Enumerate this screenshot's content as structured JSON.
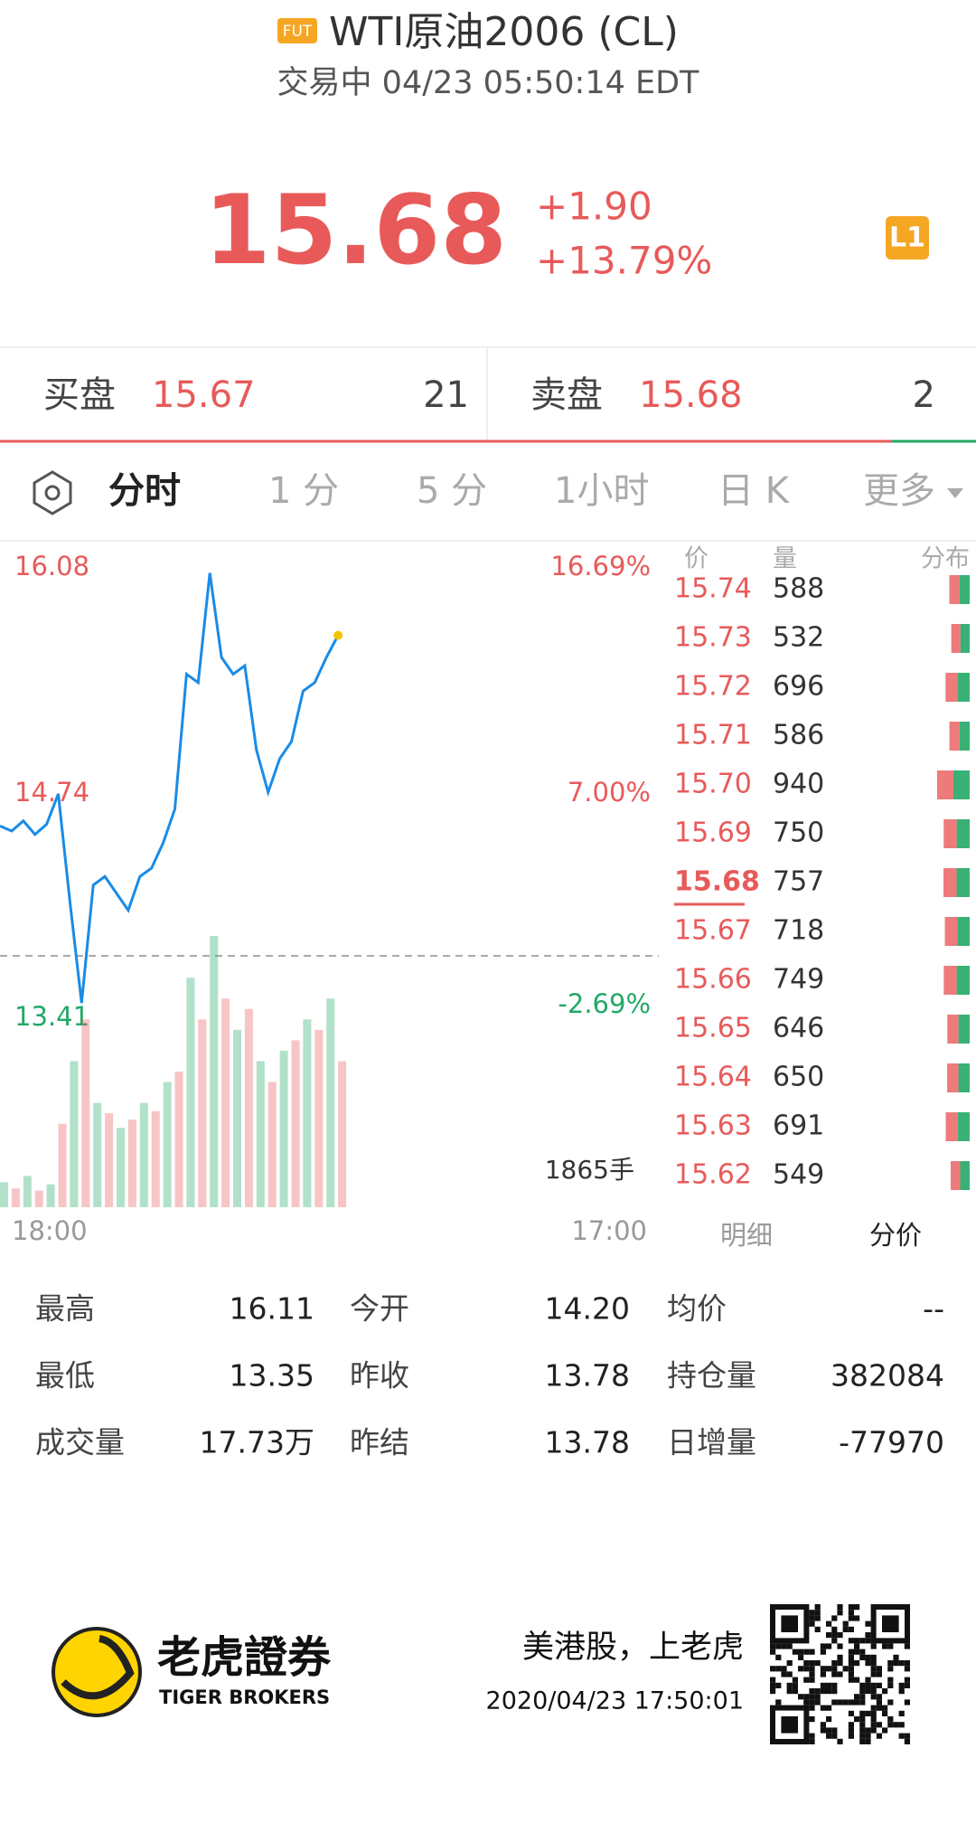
{
  "header": {
    "badge": "FUT",
    "title": "WTI原油2006 (CL)",
    "status": "交易中 04/23 05:50:14 EDT"
  },
  "quote": {
    "price": "15.68",
    "change": "+1.90",
    "change_pct": "+13.79%",
    "level": "L1"
  },
  "bid_ask": {
    "bid_label": "买盘",
    "bid_price": "15.67",
    "bid_size": "21",
    "ask_label": "卖盘",
    "ask_price": "15.68",
    "ask_size": "2"
  },
  "tabs": [
    "分时",
    "1 分",
    "5 分",
    "1小时",
    "日 K",
    "更多"
  ],
  "chart_data": {
    "type": "line",
    "color": "#1a8be6",
    "values": [
      14.55,
      14.52,
      14.58,
      14.5,
      14.56,
      14.74,
      14.1,
      13.5,
      14.2,
      14.25,
      14.15,
      14.05,
      14.25,
      14.3,
      14.45,
      14.65,
      15.45,
      15.4,
      16.05,
      15.55,
      15.45,
      15.5,
      15.0,
      14.75,
      14.95,
      15.05,
      15.35,
      15.4,
      15.55,
      15.68
    ],
    "ylim": [
      13.41,
      16.08
    ],
    "yticks": [
      16.08,
      14.74,
      13.41
    ],
    "pct_labels": [
      "16.69%",
      "7.00%",
      "-2.69%"
    ],
    "reference": 13.78,
    "volume": [
      120,
      90,
      150,
      80,
      110,
      400,
      700,
      900,
      500,
      450,
      380,
      420,
      500,
      460,
      600,
      650,
      1100,
      900,
      1300,
      1000,
      850,
      950,
      700,
      600,
      750,
      800,
      900,
      850,
      1000,
      700
    ],
    "volume_label": "1865手",
    "x_labels": [
      "18:00",
      "17:00"
    ]
  },
  "order_book": {
    "headers": [
      "价",
      "量",
      "分布"
    ],
    "rows": [
      [
        "15.74",
        "588"
      ],
      [
        "15.73",
        "532"
      ],
      [
        "15.72",
        "696"
      ],
      [
        "15.71",
        "586"
      ],
      [
        "15.70",
        "940"
      ],
      [
        "15.69",
        "750"
      ],
      [
        "15.68",
        "757"
      ],
      [
        "15.67",
        "718"
      ],
      [
        "15.66",
        "749"
      ],
      [
        "15.65",
        "646"
      ],
      [
        "15.64",
        "650"
      ],
      [
        "15.63",
        "691"
      ],
      [
        "15.62",
        "549"
      ]
    ],
    "tabs": [
      "明细",
      "分价"
    ]
  },
  "stats": [
    [
      [
        "最高",
        "16.11"
      ],
      [
        "今开",
        "14.20"
      ],
      [
        "均价",
        "--"
      ]
    ],
    [
      [
        "最低",
        "13.35"
      ],
      [
        "昨收",
        "13.78"
      ],
      [
        "持仓量",
        "382084"
      ]
    ],
    [
      [
        "成交量",
        "17.73万"
      ],
      [
        "昨结",
        "13.78"
      ],
      [
        "日增量",
        "-77970"
      ]
    ]
  ],
  "footer": {
    "brand": "老虎證券",
    "brand_en": "TIGER BROKERS",
    "slogan": "美港股，上老虎",
    "timestamp": "2020/04/23 17:50:01"
  }
}
